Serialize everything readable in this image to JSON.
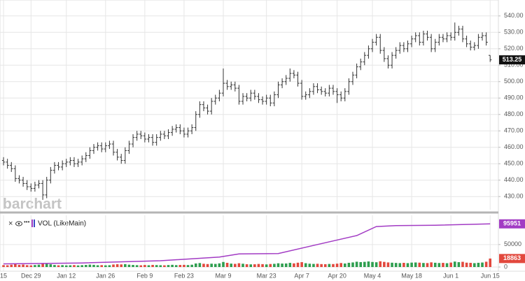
{
  "chart_data": [
    {
      "type": "ohlc",
      "logo": "barchart",
      "color": "#333333",
      "open": [
        452,
        451,
        449,
        447,
        441,
        440,
        438,
        436,
        435,
        437,
        438,
        431,
        440,
        446,
        449,
        448,
        450,
        451,
        452,
        450,
        451,
        453,
        455,
        458,
        460,
        461,
        459,
        461,
        462,
        457,
        454,
        452,
        458,
        462,
        466,
        468,
        467,
        465,
        466,
        463,
        466,
        468,
        467,
        469,
        471,
        472,
        470,
        468,
        470,
        472,
        480,
        486,
        484,
        482,
        488,
        490,
        493,
        499,
        497,
        498,
        496,
        488,
        491,
        490,
        493,
        491,
        489,
        488,
        490,
        487,
        492,
        498,
        500,
        502,
        505,
        504,
        499,
        491,
        492,
        494,
        497,
        495,
        494,
        493,
        496,
        494,
        492,
        490,
        494,
        500,
        504,
        509,
        512,
        516,
        520,
        524,
        527,
        519,
        514,
        510,
        516,
        519,
        522,
        520,
        523,
        526,
        528,
        524,
        529,
        527,
        520,
        524,
        527,
        526,
        528,
        527,
        530,
        532,
        526,
        523,
        521,
        522,
        527,
        528,
        516
      ],
      "high": [
        454,
        453,
        451,
        449,
        443,
        442,
        440,
        438,
        439,
        440,
        440,
        442,
        448,
        451,
        451,
        452,
        453,
        454,
        454,
        453,
        455,
        457,
        460,
        462,
        463,
        463,
        463,
        464,
        464,
        459,
        456,
        460,
        464,
        468,
        470,
        470,
        469,
        468,
        468,
        468,
        470,
        470,
        471,
        473,
        474,
        474,
        472,
        472,
        474,
        482,
        488,
        488,
        486,
        490,
        492,
        495,
        508,
        501,
        500,
        500,
        498,
        493,
        493,
        495,
        495,
        493,
        491,
        492,
        492,
        494,
        500,
        502,
        504,
        508,
        507,
        506,
        501,
        494,
        496,
        499,
        499,
        497,
        496,
        498,
        498,
        496,
        494,
        496,
        502,
        506,
        511,
        514,
        518,
        522,
        526,
        529,
        529,
        521,
        516,
        518,
        521,
        524,
        524,
        525,
        528,
        530,
        530,
        531,
        531,
        529,
        526,
        529,
        529,
        530,
        530,
        536,
        534,
        534,
        528,
        525,
        524,
        529,
        530,
        530,
        516
      ],
      "low": [
        449,
        447,
        445,
        439,
        438,
        436,
        434,
        433,
        433,
        435,
        428,
        429,
        438,
        444,
        446,
        446,
        448,
        449,
        448,
        448,
        449,
        451,
        453,
        456,
        458,
        457,
        457,
        459,
        455,
        452,
        450,
        450,
        456,
        460,
        464,
        465,
        463,
        463,
        461,
        461,
        464,
        465,
        465,
        467,
        469,
        468,
        466,
        466,
        468,
        470,
        478,
        482,
        480,
        480,
        486,
        488,
        491,
        495,
        495,
        494,
        486,
        486,
        488,
        488,
        489,
        487,
        486,
        486,
        485,
        485,
        490,
        496,
        498,
        500,
        502,
        497,
        489,
        489,
        490,
        492,
        493,
        492,
        491,
        491,
        492,
        487,
        488,
        488,
        492,
        498,
        502,
        507,
        510,
        514,
        518,
        522,
        517,
        512,
        508,
        508,
        514,
        517,
        518,
        518,
        521,
        524,
        522,
        522,
        525,
        518,
        518,
        522,
        524,
        524,
        525,
        525,
        528,
        524,
        521,
        519,
        519,
        520,
        525,
        522,
        512
      ],
      "close": [
        451,
        449,
        447,
        441,
        440,
        438,
        436,
        435,
        437,
        438,
        431,
        440,
        446,
        449,
        448,
        450,
        451,
        452,
        450,
        451,
        453,
        455,
        458,
        460,
        461,
        459,
        461,
        462,
        457,
        454,
        452,
        458,
        462,
        466,
        468,
        467,
        465,
        466,
        463,
        466,
        468,
        467,
        469,
        471,
        472,
        470,
        468,
        470,
        472,
        480,
        486,
        484,
        482,
        488,
        490,
        493,
        499,
        497,
        498,
        496,
        488,
        491,
        490,
        493,
        491,
        489,
        488,
        490,
        487,
        492,
        498,
        500,
        502,
        505,
        504,
        499,
        491,
        492,
        494,
        497,
        495,
        494,
        493,
        496,
        494,
        492,
        490,
        494,
        500,
        504,
        509,
        512,
        516,
        520,
        524,
        527,
        519,
        514,
        510,
        516,
        519,
        522,
        520,
        523,
        526,
        528,
        524,
        529,
        527,
        520,
        524,
        527,
        526,
        528,
        527,
        530,
        532,
        526,
        523,
        521,
        522,
        527,
        528,
        524,
        513.25
      ],
      "xlim": [
        -0.9,
        126.1
      ],
      "ylim": [
        422,
        548
      ],
      "yticks": [
        {
          "value": 430,
          "label": "430.00"
        },
        {
          "value": 440,
          "label": "440.00"
        },
        {
          "value": 450,
          "label": "450.00"
        },
        {
          "value": 460,
          "label": "460.00"
        },
        {
          "value": 470,
          "label": "470.00"
        },
        {
          "value": 480,
          "label": "480.00"
        },
        {
          "value": 490,
          "label": "490.00"
        },
        {
          "value": 500,
          "label": "500.00"
        },
        {
          "value": 510,
          "label": "510.00"
        },
        {
          "value": 520,
          "label": "520.00"
        },
        {
          "value": 530,
          "label": "530.00"
        },
        {
          "value": 540,
          "label": "540.00"
        }
      ],
      "grid": true
    },
    {
      "type": "bar",
      "up_color": "#2e9e4f",
      "down_color": "#e2483d",
      "values": [
        4200,
        3900,
        5100,
        6300,
        4800,
        5500,
        4100,
        3700,
        4400,
        5200,
        7800,
        6900,
        6100,
        4500,
        3800,
        4200,
        3600,
        3900,
        4300,
        3500,
        4100,
        4600,
        5300,
        4800,
        3900,
        4200,
        3700,
        4000,
        5600,
        6200,
        5800,
        6400,
        5200,
        4600,
        4100,
        3800,
        4500,
        3900,
        4700,
        4300,
        4000,
        3800,
        4400,
        4900,
        4200,
        4600,
        4800,
        4300,
        5100,
        7900,
        8800,
        7200,
        6600,
        7400,
        6900,
        8100,
        11200,
        9300,
        7600,
        7000,
        8400,
        7300,
        6200,
        5900,
        6100,
        6800,
        6400,
        5800,
        6700,
        7100,
        8300,
        7700,
        7900,
        9200,
        8100,
        9600,
        10800,
        8500,
        7400,
        6900,
        7200,
        6500,
        6300,
        6800,
        6600,
        7500,
        8900,
        7800,
        9400,
        10200,
        11800,
        10900,
        11500,
        12400,
        11200,
        10600,
        12800,
        11400,
        10200,
        9600,
        9100,
        8700,
        9300,
        8600,
        9800,
        10100,
        9700,
        9000,
        8800,
        10400,
        9500,
        8900,
        9200,
        8500,
        9900,
        12100,
        10800,
        11600,
        9700,
        9300,
        8600,
        9400,
        10000,
        11800,
        18863
      ],
      "study": {
        "name": "VOL (LikeMain)",
        "color": "#a23bc4",
        "x": [
          0,
          20,
          40,
          55,
          60,
          70,
          80,
          90,
          95,
          100,
          110,
          124
        ],
        "values": [
          7000,
          9000,
          14000,
          22000,
          29000,
          30000,
          50000,
          70000,
          90000,
          92000,
          93000,
          95951
        ]
      },
      "xlim": [
        -0.9,
        126.1
      ],
      "ylim": [
        0,
        115000
      ],
      "yticks": [
        0,
        50000
      ],
      "xticks": [
        {
          "value": 0,
          "label": "15"
        },
        {
          "value": 7,
          "label": "Dec 29"
        },
        {
          "value": 16,
          "label": "Jan 12"
        },
        {
          "value": 26,
          "label": "Jan 26"
        },
        {
          "value": 36,
          "label": "Feb 9"
        },
        {
          "value": 46,
          "label": "Feb 23"
        },
        {
          "value": 56,
          "label": "Mar 9"
        },
        {
          "value": 67,
          "label": "Mar 23"
        },
        {
          "value": 76,
          "label": "Apr 7"
        },
        {
          "value": 85,
          "label": "Apr 20"
        },
        {
          "value": 94,
          "label": "May 4"
        },
        {
          "value": 104,
          "label": "May 18"
        },
        {
          "value": 114,
          "label": "Jun 1"
        },
        {
          "value": 124,
          "label": "Jun 15"
        }
      ],
      "grid": true
    }
  ]
}
